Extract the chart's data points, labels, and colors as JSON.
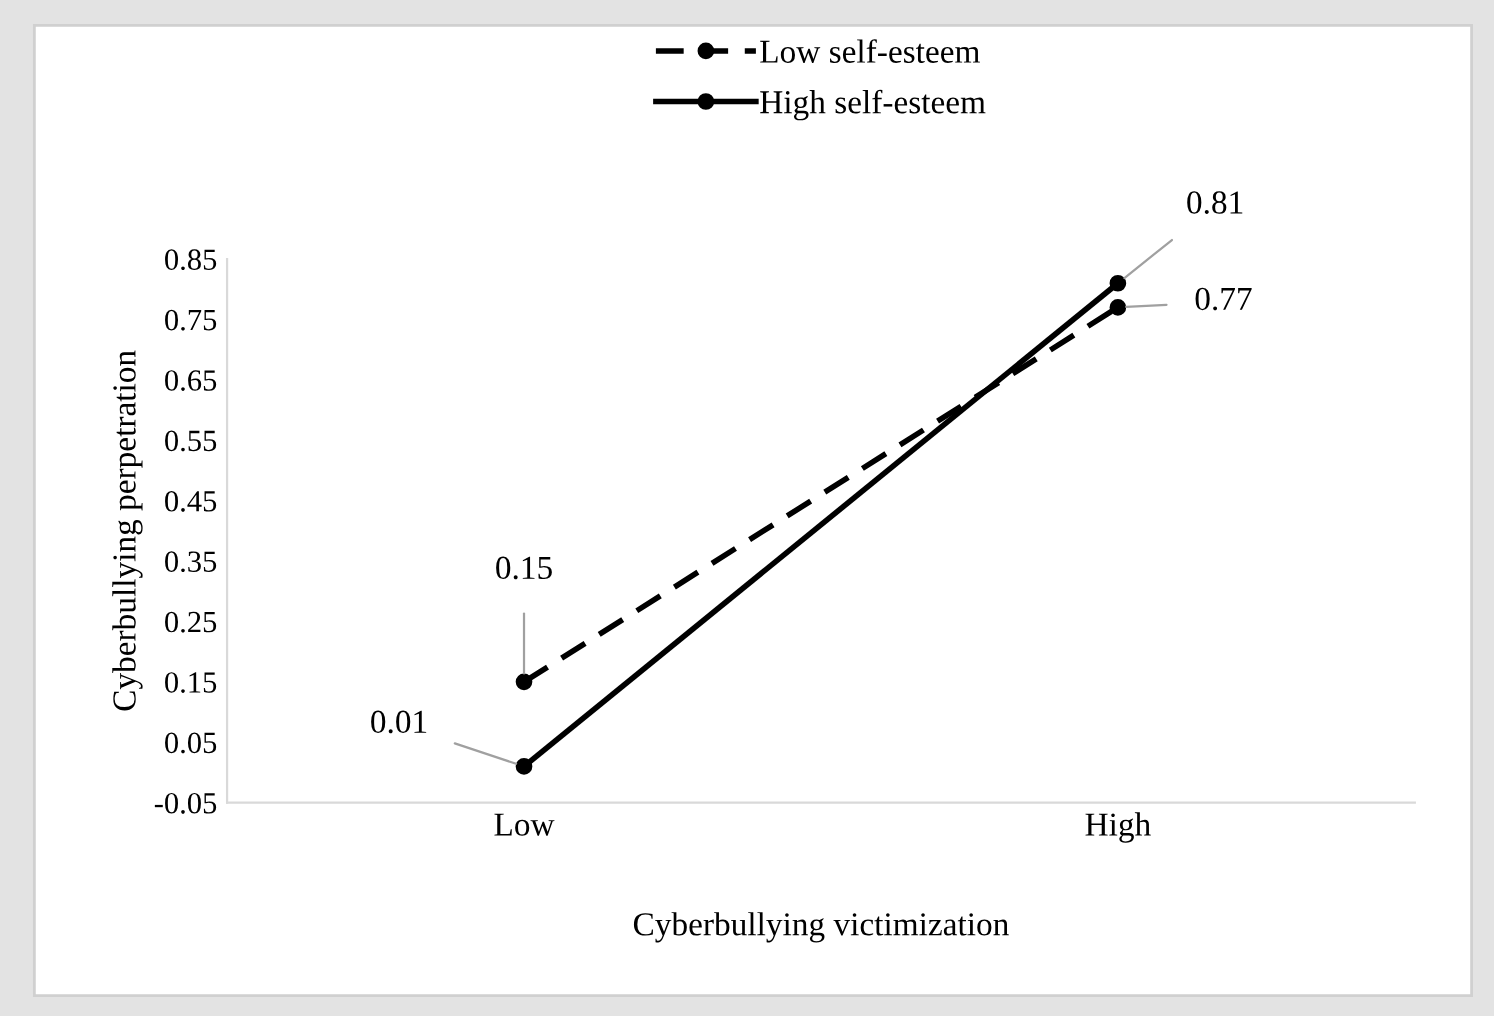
{
  "chart_data": {
    "type": "line",
    "xlabel": "Cyberbullying victimization",
    "ylabel": "Cyberbullying perpetration",
    "categories": [
      "Low",
      "High"
    ],
    "series": [
      {
        "name": "Low self-esteem",
        "color": "#000000",
        "line_style": "dashed",
        "values": [
          0.15,
          0.77
        ]
      },
      {
        "name": "High self-esteem",
        "color": "#000000",
        "line_style": "solid",
        "values": [
          0.01,
          0.81
        ]
      }
    ],
    "ylim": [
      -0.05,
      0.85
    ],
    "yticks": [
      -0.05,
      0.05,
      0.15,
      0.25,
      0.35,
      0.45,
      0.55,
      0.65,
      0.75,
      0.85
    ],
    "marker": "circle",
    "data_labels": true,
    "grid": false,
    "legend": "top"
  }
}
